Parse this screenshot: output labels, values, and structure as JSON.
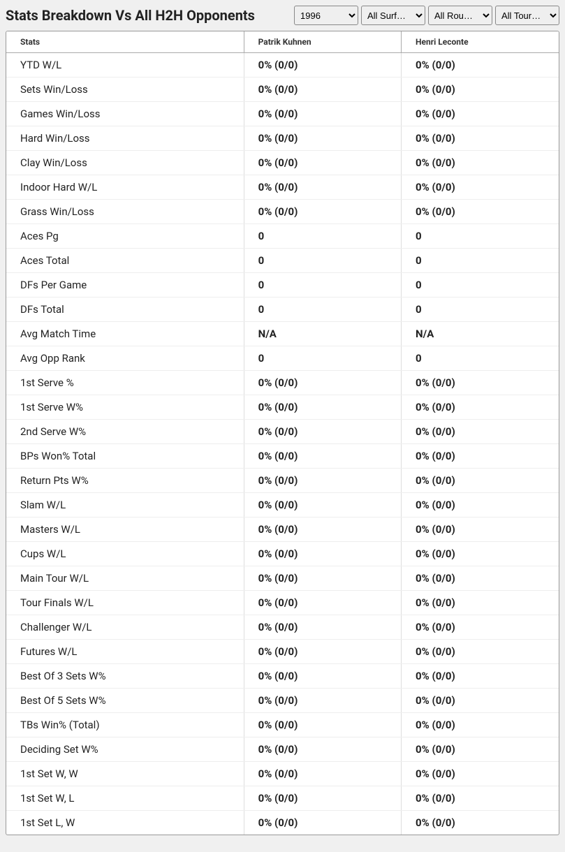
{
  "header": {
    "title": "Stats Breakdown Vs All H2H Opponents",
    "filters": {
      "year": "1996",
      "surface": "All Surf…",
      "round": "All Rou…",
      "tour": "All Tour…"
    }
  },
  "table": {
    "columns": {
      "stats": "Stats",
      "player1": "Patrik Kuhnen",
      "player2": "Henri Leconte"
    },
    "rows": [
      {
        "label": "YTD W/L",
        "p1": "0% (0/0)",
        "p2": "0% (0/0)"
      },
      {
        "label": "Sets Win/Loss",
        "p1": "0% (0/0)",
        "p2": "0% (0/0)"
      },
      {
        "label": "Games Win/Loss",
        "p1": "0% (0/0)",
        "p2": "0% (0/0)"
      },
      {
        "label": "Hard Win/Loss",
        "p1": "0% (0/0)",
        "p2": "0% (0/0)"
      },
      {
        "label": "Clay Win/Loss",
        "p1": "0% (0/0)",
        "p2": "0% (0/0)"
      },
      {
        "label": "Indoor Hard W/L",
        "p1": "0% (0/0)",
        "p2": "0% (0/0)"
      },
      {
        "label": "Grass Win/Loss",
        "p1": "0% (0/0)",
        "p2": "0% (0/0)"
      },
      {
        "label": "Aces Pg",
        "p1": "0",
        "p2": "0"
      },
      {
        "label": "Aces Total",
        "p1": "0",
        "p2": "0"
      },
      {
        "label": "DFs Per Game",
        "p1": "0",
        "p2": "0"
      },
      {
        "label": "DFs Total",
        "p1": "0",
        "p2": "0"
      },
      {
        "label": "Avg Match Time",
        "p1": "N/A",
        "p2": "N/A"
      },
      {
        "label": "Avg Opp Rank",
        "p1": "0",
        "p2": "0"
      },
      {
        "label": "1st Serve %",
        "p1": "0% (0/0)",
        "p2": "0% (0/0)"
      },
      {
        "label": "1st Serve W%",
        "p1": "0% (0/0)",
        "p2": "0% (0/0)"
      },
      {
        "label": "2nd Serve W%",
        "p1": "0% (0/0)",
        "p2": "0% (0/0)"
      },
      {
        "label": "BPs Won% Total",
        "p1": "0% (0/0)",
        "p2": "0% (0/0)"
      },
      {
        "label": "Return Pts W%",
        "p1": "0% (0/0)",
        "p2": "0% (0/0)"
      },
      {
        "label": "Slam W/L",
        "p1": "0% (0/0)",
        "p2": "0% (0/0)"
      },
      {
        "label": "Masters W/L",
        "p1": "0% (0/0)",
        "p2": "0% (0/0)"
      },
      {
        "label": "Cups W/L",
        "p1": "0% (0/0)",
        "p2": "0% (0/0)"
      },
      {
        "label": "Main Tour W/L",
        "p1": "0% (0/0)",
        "p2": "0% (0/0)"
      },
      {
        "label": "Tour Finals W/L",
        "p1": "0% (0/0)",
        "p2": "0% (0/0)"
      },
      {
        "label": "Challenger W/L",
        "p1": "0% (0/0)",
        "p2": "0% (0/0)"
      },
      {
        "label": "Futures W/L",
        "p1": "0% (0/0)",
        "p2": "0% (0/0)"
      },
      {
        "label": "Best Of 3 Sets W%",
        "p1": "0% (0/0)",
        "p2": "0% (0/0)"
      },
      {
        "label": "Best Of 5 Sets W%",
        "p1": "0% (0/0)",
        "p2": "0% (0/0)"
      },
      {
        "label": "TBs Win% (Total)",
        "p1": "0% (0/0)",
        "p2": "0% (0/0)"
      },
      {
        "label": "Deciding Set W%",
        "p1": "0% (0/0)",
        "p2": "0% (0/0)"
      },
      {
        "label": "1st Set W, W",
        "p1": "0% (0/0)",
        "p2": "0% (0/0)"
      },
      {
        "label": "1st Set W, L",
        "p1": "0% (0/0)",
        "p2": "0% (0/0)"
      },
      {
        "label": "1st Set L, W",
        "p1": "0% (0/0)",
        "p2": "0% (0/0)"
      }
    ]
  }
}
